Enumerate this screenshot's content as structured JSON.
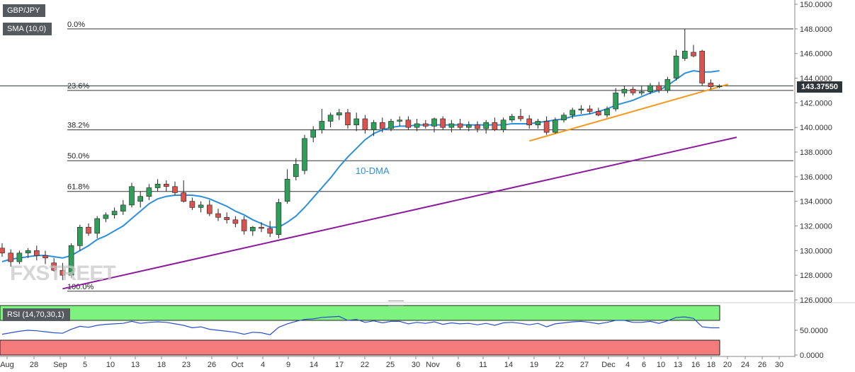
{
  "chart_data": {
    "type": "candlestick",
    "symbol_label": "GBP/JPY",
    "sma_label": "SMA (10,0)",
    "rsi_label": "RSI (14,70,30,1)",
    "annotation_label": "10-DMA",
    "last_price_label": "143.37550",
    "watermark": "FXSTREET",
    "price_axis": {
      "ylim": [
        126.0,
        150.0
      ],
      "ticks": [
        "126.0000",
        "128.0000",
        "130.0000",
        "132.0000",
        "134.0000",
        "136.0000",
        "138.0000",
        "140.0000",
        "142.0000",
        "144.0000",
        "146.0000",
        "148.0000",
        "150.0000"
      ]
    },
    "rsi_axis": {
      "ylim": [
        0,
        100
      ],
      "ticks": [
        "0.0000",
        "50.0000"
      ],
      "overbought": 70,
      "oversold": 30
    },
    "x_labels": [
      "Aug",
      "28",
      "Sep",
      "5",
      "10",
      "13",
      "18",
      "23",
      "26",
      "Oct",
      "4",
      "9",
      "14",
      "17",
      "22",
      "25",
      "30",
      "Nov",
      "6",
      "11",
      "14",
      "19",
      "22",
      "27",
      "Dec",
      "4",
      "6",
      "10",
      "13",
      "16",
      "18",
      "20",
      "24",
      "26",
      "30"
    ],
    "fibonacci": [
      {
        "label": "0.0%",
        "price": 148.0
      },
      {
        "label": "23.6%",
        "price": 143.0
      },
      {
        "label": "38.2%",
        "price": 139.8
      },
      {
        "label": "50.0%",
        "price": 137.3
      },
      {
        "label": "61.8%",
        "price": 134.8
      },
      {
        "label": "100.0%",
        "price": 126.7
      }
    ],
    "trendlines": [
      {
        "name": "support-long",
        "color": "#8b1a9c",
        "from": [
          7,
          126.9
        ],
        "to": [
          85,
          139.2
        ]
      },
      {
        "name": "support-short",
        "color": "#f39a1f",
        "from": [
          61,
          138.9
        ],
        "to": [
          84,
          143.5
        ]
      }
    ],
    "colors": {
      "up": "#2e9e58",
      "down": "#d9534f",
      "sma": "#2b8fdc",
      "rsi": "#2b4fc8",
      "rsi_high_zone": "#7ef27e",
      "rsi_low_zone": "#f47b7b"
    },
    "candles": [
      [
        130.2,
        130.6,
        129.5,
        129.8
      ],
      [
        129.8,
        130.1,
        128.7,
        129.1
      ],
      [
        129.1,
        130.0,
        128.9,
        129.8
      ],
      [
        129.8,
        130.2,
        129.4,
        130.0
      ],
      [
        130.0,
        130.4,
        129.2,
        129.6
      ],
      [
        129.6,
        130.0,
        128.9,
        129.4
      ],
      [
        129.0,
        129.4,
        128.3,
        128.4
      ],
      [
        128.4,
        129.0,
        127.6,
        128.0
      ],
      [
        128.0,
        130.6,
        127.8,
        130.4
      ],
      [
        130.4,
        132.1,
        130.0,
        131.9
      ],
      [
        131.9,
        132.2,
        131.2,
        131.4
      ],
      [
        131.4,
        132.8,
        131.0,
        132.6
      ],
      [
        132.6,
        133.1,
        132.3,
        132.9
      ],
      [
        132.9,
        133.5,
        132.6,
        133.2
      ],
      [
        133.2,
        134.1,
        132.9,
        133.7
      ],
      [
        133.7,
        135.5,
        133.5,
        135.2
      ],
      [
        134.0,
        134.8,
        133.5,
        134.4
      ],
      [
        134.4,
        135.4,
        134.1,
        135.1
      ],
      [
        135.1,
        135.8,
        134.8,
        135.4
      ],
      [
        135.4,
        135.7,
        134.8,
        135.2
      ],
      [
        135.2,
        135.6,
        134.5,
        134.7
      ],
      [
        134.7,
        135.7,
        133.9,
        134.0
      ],
      [
        134.0,
        134.3,
        133.3,
        133.5
      ],
      [
        133.5,
        134.0,
        133.1,
        133.7
      ],
      [
        133.7,
        134.1,
        132.8,
        133.0
      ],
      [
        133.0,
        133.4,
        132.4,
        132.7
      ],
      [
        132.7,
        133.1,
        132.2,
        132.5
      ],
      [
        132.5,
        132.8,
        131.9,
        132.2
      ],
      [
        132.5,
        132.8,
        131.3,
        131.6
      ],
      [
        131.6,
        132.0,
        131.2,
        131.9
      ],
      [
        131.9,
        132.3,
        131.5,
        131.8
      ],
      [
        131.8,
        132.4,
        131.1,
        131.4
      ],
      [
        131.3,
        134.2,
        131.0,
        133.9
      ],
      [
        134.0,
        136.6,
        133.8,
        135.8
      ],
      [
        136.0,
        137.5,
        135.7,
        137.0
      ],
      [
        136.5,
        139.4,
        136.2,
        139.1
      ],
      [
        139.2,
        140.1,
        138.8,
        139.8
      ],
      [
        139.8,
        141.5,
        139.5,
        140.5
      ],
      [
        140.5,
        141.2,
        140.0,
        141.0
      ],
      [
        141.0,
        141.5,
        140.6,
        141.2
      ],
      [
        141.2,
        141.5,
        139.9,
        140.2
      ],
      [
        140.2,
        141.2,
        139.7,
        140.7
      ],
      [
        140.7,
        141.0,
        139.5,
        139.8
      ],
      [
        139.8,
        140.6,
        139.3,
        140.4
      ],
      [
        140.4,
        140.8,
        139.6,
        139.9
      ],
      [
        139.9,
        140.7,
        139.7,
        140.5
      ],
      [
        140.5,
        140.9,
        140.1,
        140.6
      ],
      [
        140.6,
        140.9,
        139.8,
        140.0
      ],
      [
        140.0,
        140.7,
        139.7,
        140.3
      ],
      [
        140.3,
        140.6,
        139.9,
        140.1
      ],
      [
        140.1,
        140.8,
        139.6,
        140.7
      ],
      [
        140.7,
        140.9,
        139.8,
        140.0
      ],
      [
        140.0,
        140.6,
        139.6,
        140.3
      ],
      [
        140.3,
        140.7,
        139.8,
        140.0
      ],
      [
        140.0,
        140.5,
        139.7,
        140.2
      ],
      [
        140.2,
        140.5,
        139.6,
        139.9
      ],
      [
        139.9,
        140.6,
        139.5,
        140.4
      ],
      [
        140.4,
        140.8,
        139.7,
        139.8
      ],
      [
        139.8,
        140.8,
        139.6,
        140.6
      ],
      [
        140.6,
        141.1,
        140.4,
        140.9
      ],
      [
        140.9,
        141.5,
        140.5,
        140.7
      ],
      [
        140.7,
        141.0,
        139.9,
        140.2
      ],
      [
        140.2,
        140.7,
        139.9,
        140.5
      ],
      [
        140.5,
        140.9,
        139.4,
        139.6
      ],
      [
        139.6,
        140.8,
        139.5,
        140.6
      ],
      [
        140.6,
        141.2,
        140.4,
        141.0
      ],
      [
        141.0,
        141.6,
        140.7,
        141.4
      ],
      [
        141.4,
        141.8,
        141.1,
        141.5
      ],
      [
        141.5,
        141.8,
        141.1,
        141.3
      ],
      [
        141.3,
        141.6,
        140.9,
        141.0
      ],
      [
        141.0,
        141.7,
        140.8,
        141.5
      ],
      [
        141.5,
        143.2,
        141.3,
        142.8
      ],
      [
        142.8,
        143.4,
        142.5,
        143.1
      ],
      [
        143.1,
        143.3,
        142.6,
        142.8
      ],
      [
        142.8,
        143.4,
        142.6,
        142.9
      ],
      [
        142.9,
        143.6,
        142.7,
        143.4
      ],
      [
        143.4,
        143.7,
        142.8,
        143.0
      ],
      [
        143.0,
        144.1,
        142.8,
        143.9
      ],
      [
        144.0,
        146.3,
        143.8,
        145.8
      ],
      [
        145.6,
        148.0,
        145.4,
        146.2
      ],
      [
        146.1,
        146.7,
        145.7,
        145.8
      ],
      [
        146.2,
        146.3,
        143.4,
        143.6
      ],
      [
        143.6,
        143.9,
        143.1,
        143.3
      ],
      [
        143.3,
        143.5,
        143.2,
        143.38
      ]
    ],
    "sma": [
      129.1,
      129.3,
      129.4,
      129.5,
      129.6,
      129.6,
      129.5,
      129.4,
      129.6,
      130.0,
      130.4,
      130.9,
      131.2,
      131.6,
      132.0,
      132.6,
      133.2,
      133.8,
      134.2,
      134.4,
      134.5,
      134.5,
      134.5,
      134.4,
      134.2,
      133.9,
      133.6,
      133.2,
      132.9,
      132.5,
      132.2,
      131.9,
      131.9,
      132.3,
      132.8,
      133.5,
      134.3,
      135.1,
      135.9,
      136.8,
      137.6,
      138.3,
      139.0,
      139.5,
      139.8,
      140.0,
      140.1,
      140.1,
      140.2,
      140.2,
      140.2,
      140.2,
      140.2,
      140.2,
      140.2,
      140.2,
      140.2,
      140.2,
      140.2,
      140.3,
      140.3,
      140.3,
      140.4,
      140.5,
      140.6,
      140.7,
      140.9,
      141.0,
      141.1,
      141.3,
      141.5,
      141.8,
      142.0,
      142.2,
      142.5,
      142.8,
      143.0,
      143.4,
      143.9,
      144.4,
      144.6,
      144.5,
      144.5,
      144.6
    ],
    "rsi": [
      42,
      45,
      48,
      50,
      49,
      47,
      45,
      44,
      52,
      58,
      56,
      60,
      62,
      63,
      64,
      68,
      64,
      66,
      67,
      66,
      63,
      60,
      55,
      57,
      52,
      50,
      48,
      46,
      42,
      46,
      45,
      41,
      56,
      63,
      68,
      72,
      73,
      76,
      77,
      78,
      70,
      72,
      66,
      69,
      65,
      68,
      68,
      63,
      66,
      64,
      67,
      62,
      65,
      63,
      64,
      61,
      64,
      60,
      65,
      66,
      64,
      61,
      64,
      57,
      63,
      65,
      67,
      68,
      66,
      63,
      66,
      70,
      70,
      66,
      66,
      68,
      64,
      69,
      76,
      77,
      74,
      57,
      55,
      55
    ]
  }
}
